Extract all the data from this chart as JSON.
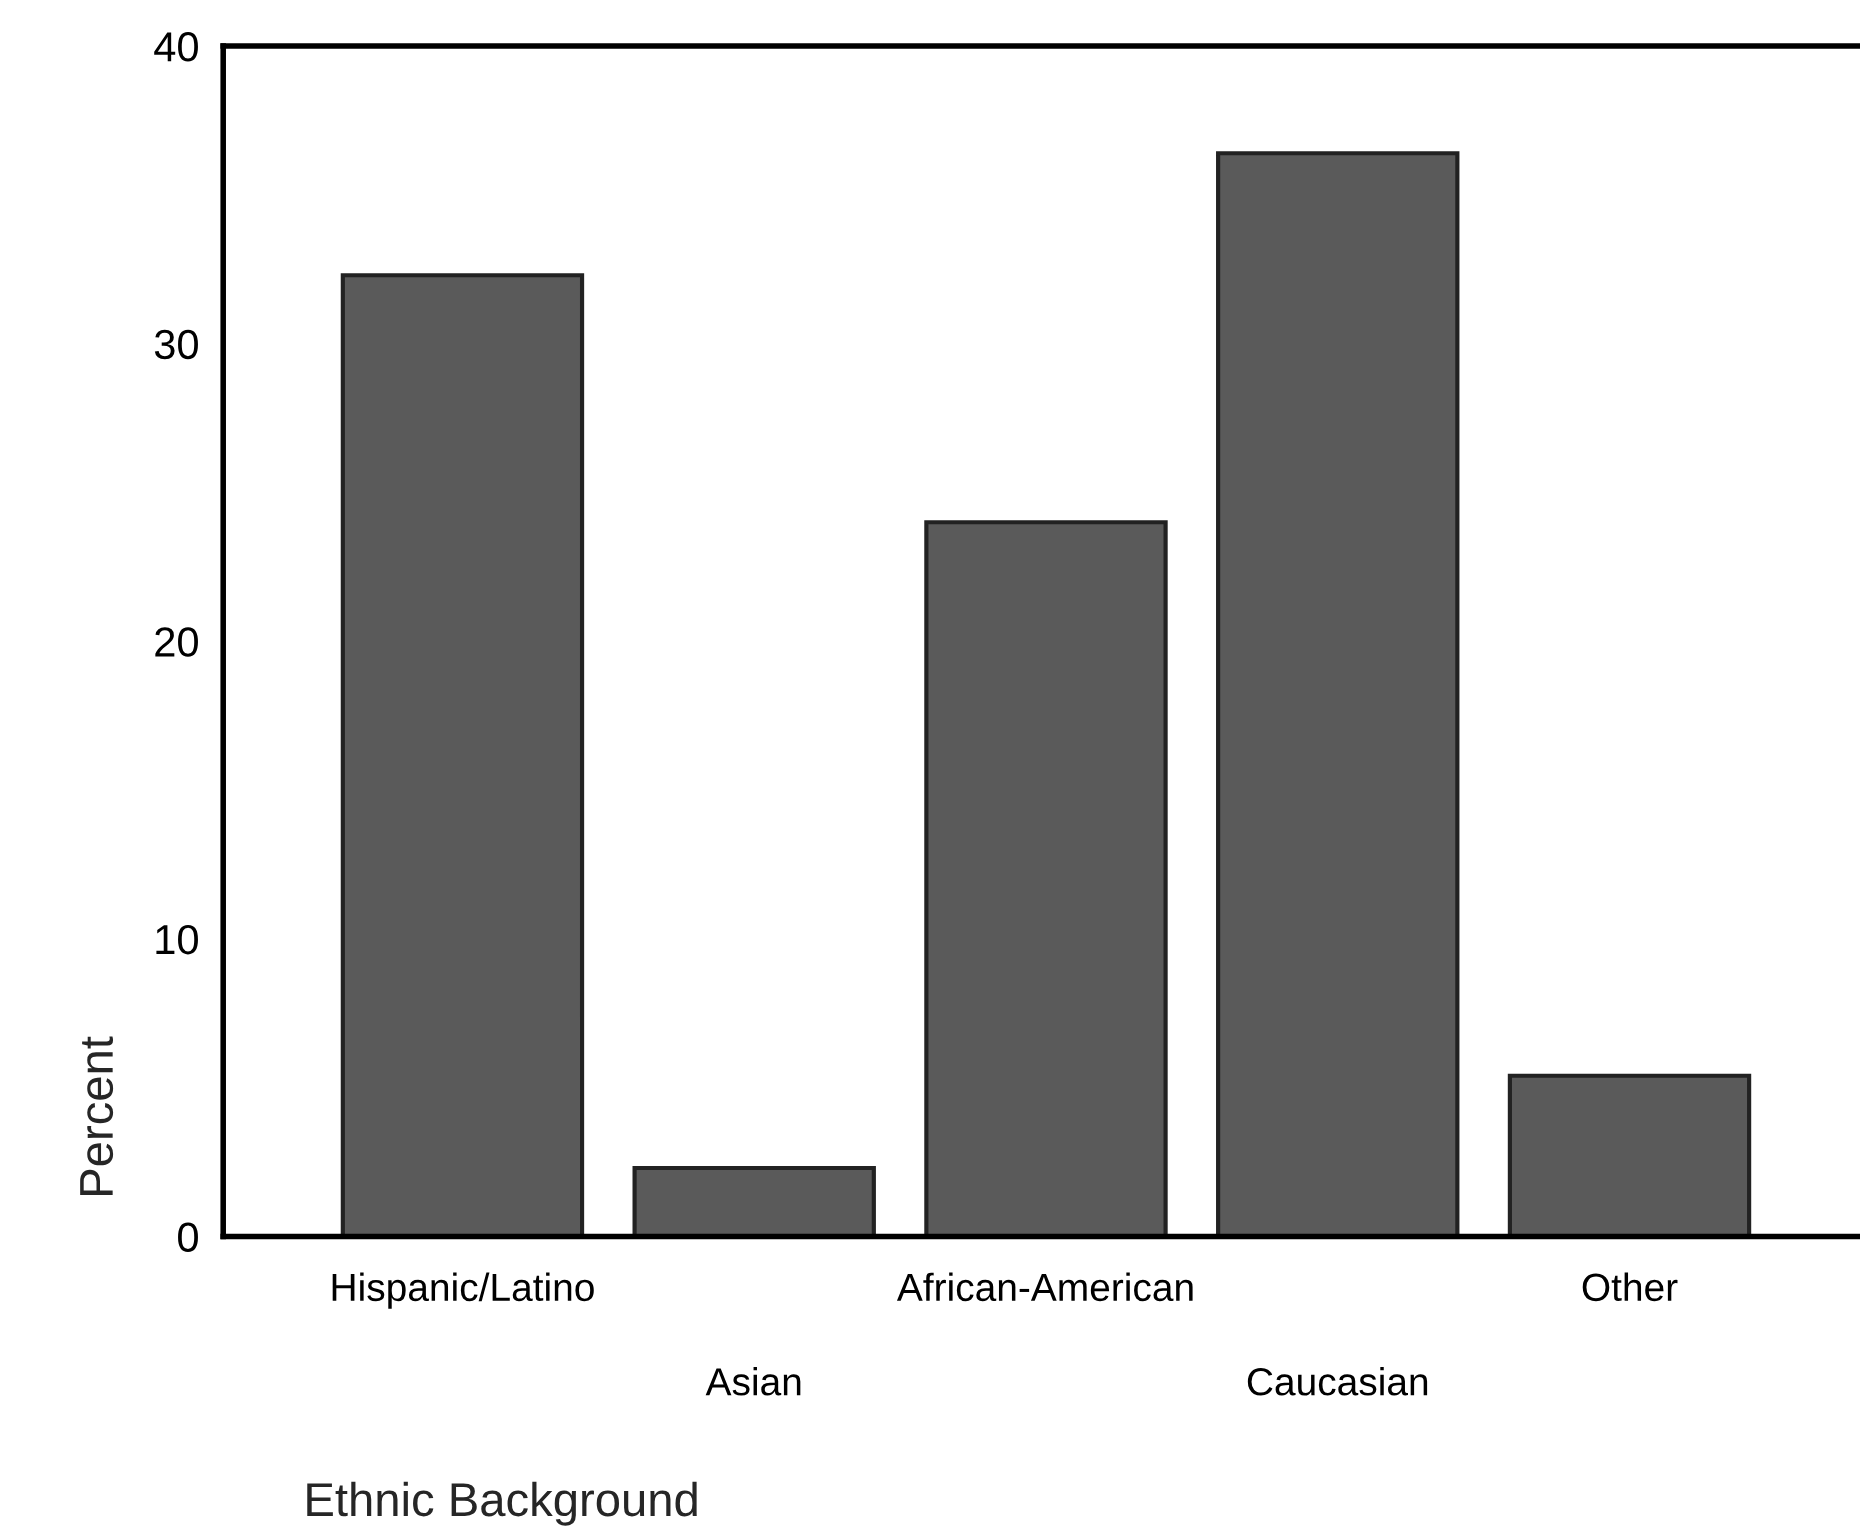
{
  "chart_data": {
    "type": "bar",
    "xlabel": "Ethnic Background",
    "ylabel": "Percent",
    "categories": [
      "Hispanic/Latino",
      "Asian",
      "African-American",
      "Caucasian",
      "Other"
    ],
    "values": [
      32.3,
      2.3,
      24.0,
      36.4,
      5.4
    ],
    "color": "#5a5a5a",
    "ylim": [
      0,
      40
    ],
    "yticks": [
      0,
      10,
      20,
      30,
      40
    ],
    "grid": false
  }
}
